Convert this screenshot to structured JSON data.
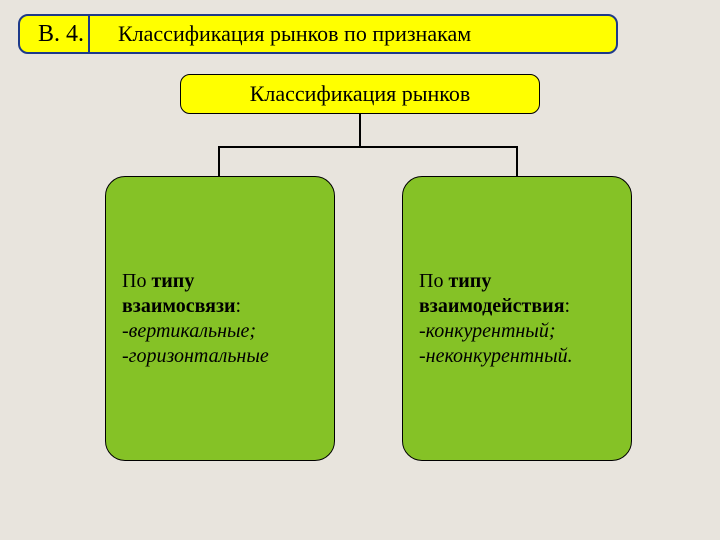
{
  "header": {
    "number": "В. 4.",
    "title": "Классификация рынков по признакам"
  },
  "topbox": {
    "label": "Классификация рынков"
  },
  "leaves": {
    "left": {
      "line1_prefix": "По ",
      "line1_bold": "типу",
      "line2_bold": "взаимосвязи",
      "line2_suffix": ":",
      "line3": "-вертикальные;",
      "line4": "-горизонтальные"
    },
    "right": {
      "line1_prefix": "По ",
      "line1_bold": "типу",
      "line2_bold": "взаимодействия",
      "line2_suffix": ":",
      "line3": "-конкурентный;",
      "line4": "-неконкурентный."
    }
  },
  "style": {
    "page_bg": "#e8e4dd",
    "yellow": "#ffff00",
    "green": "#85c226",
    "header_border": "#1e3a8a",
    "box_border": "#000000",
    "text_color": "#000000",
    "header_fontsize": 22,
    "leaf_fontsize": 20,
    "border_radius_header": 10,
    "border_radius_leaf": 20
  }
}
